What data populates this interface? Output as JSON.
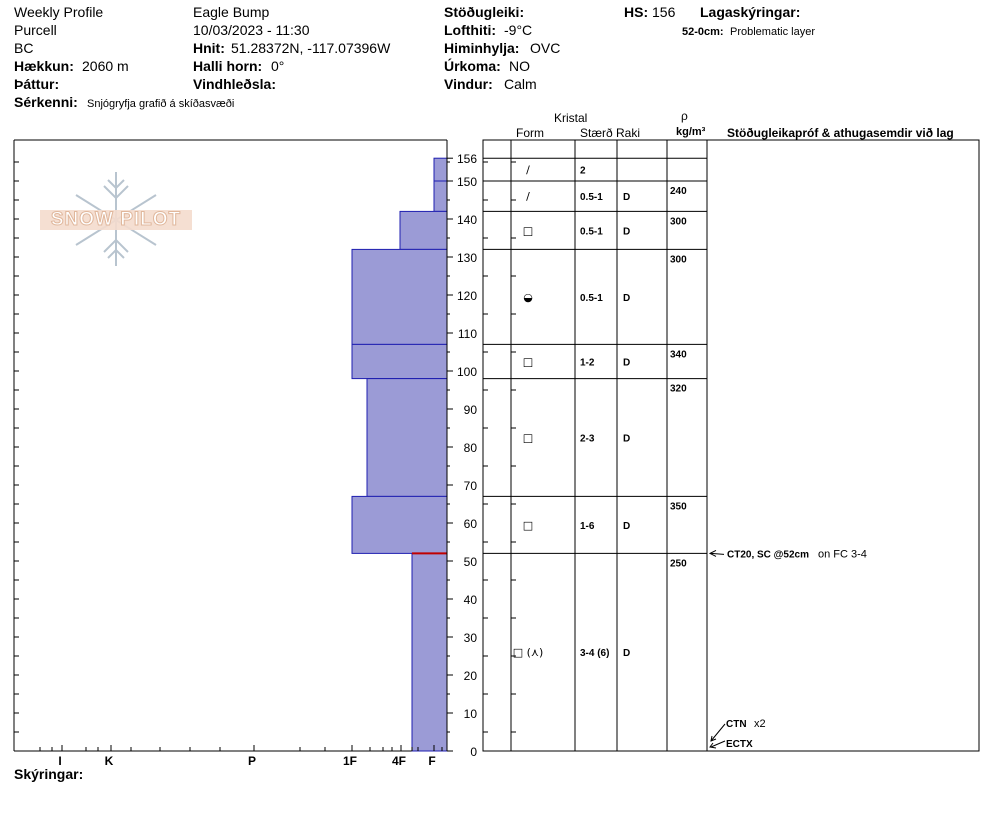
{
  "header": {
    "profile_type": "Weekly Profile",
    "range": "Purcell",
    "region": "BC",
    "elevation_label": "Hækkun:",
    "elevation": "2060 m",
    "aspect_label": "Þáttur:",
    "aspect": "",
    "remarks_label": "Sérkenni:",
    "remarks": "Snjógryfja grafið á skíðasvæði",
    "location": "Eagle Bump",
    "datetime": "10/03/2023 - 11:30",
    "coords_label": "Hnit:",
    "coords": "51.28372N, -117.07396W",
    "slope_label": "Halli horn:",
    "slope": "0°",
    "wind_loading_label": "Vindhleðsla:",
    "wind_loading": "",
    "stability_label": "Stöðugleiki:",
    "stability": "",
    "air_temp_label": "Lofthiti:",
    "air_temp": "-9°C",
    "sky_label": "Himinhylja:",
    "sky": "OVC",
    "precip_label": "Úrkoma:",
    "precip": "NO",
    "wind_label": "Vindur:",
    "wind": "Calm",
    "hs_label": "HS:",
    "hs": "156",
    "layer_notes_label": "Lagaskýringar:",
    "layer_note_depth": "52-0cm:",
    "layer_note_text": "Problematic layer",
    "footer_label": "Skýringar:",
    "logo_text": "SNOW PILOT"
  },
  "columns": {
    "crystal": "Kristal",
    "form": "Form",
    "size": "Stærð",
    "moisture": "Raki",
    "density_symbol": "ρ",
    "density_unit": "kg/m³",
    "tests": "Stöðugleikapróf & athugasemdir við lag"
  },
  "chart_data": {
    "type": "bar",
    "title": "",
    "y_axis": {
      "min": 0,
      "max": 156,
      "ticks": [
        0,
        10,
        20,
        30,
        40,
        50,
        60,
        70,
        80,
        90,
        100,
        110,
        120,
        130,
        140,
        150,
        156
      ]
    },
    "hardness_scale": [
      "I",
      "K",
      "P",
      "1F",
      "4F",
      "F"
    ],
    "layers": [
      {
        "bottom": 150,
        "top": 156,
        "hardness": "F",
        "form": "/",
        "size": "2",
        "moisture": "",
        "density": ""
      },
      {
        "bottom": 142,
        "top": 150,
        "hardness": "F",
        "form": "/",
        "size": "0.5-1",
        "moisture": "D",
        "density": "240"
      },
      {
        "bottom": 132,
        "top": 142,
        "hardness": "4F+",
        "form": "□",
        "size": "0.5-1",
        "moisture": "D",
        "density": "300"
      },
      {
        "bottom": 107,
        "top": 132,
        "hardness": "1F",
        "form": "◒",
        "size": "0.5-1",
        "moisture": "D",
        "density": "300"
      },
      {
        "bottom": 98,
        "top": 107,
        "hardness": "1F",
        "form": "□",
        "size": "1-2",
        "moisture": "D",
        "density": "340"
      },
      {
        "bottom": 67,
        "top": 98,
        "hardness": "1F+",
        "form": "□",
        "size": "2-3",
        "moisture": "D",
        "density": "320"
      },
      {
        "bottom": 52,
        "top": 67,
        "hardness": "1F",
        "form": "□",
        "size": "1-6",
        "moisture": "D",
        "density": "350"
      },
      {
        "bottom": 0,
        "top": 52,
        "hardness": "4F-",
        "form": "□ (⋏)",
        "size": "3-4 (6)",
        "moisture": "D",
        "density": "250"
      }
    ],
    "tests": [
      {
        "depth": 52,
        "label": "CT20, SC @52cm",
        "extra": "on FC 3-4"
      },
      {
        "depth": 5,
        "label": "CTN",
        "extra": "x2"
      },
      {
        "depth": 0,
        "label": "ECTX",
        "extra": ""
      }
    ]
  }
}
